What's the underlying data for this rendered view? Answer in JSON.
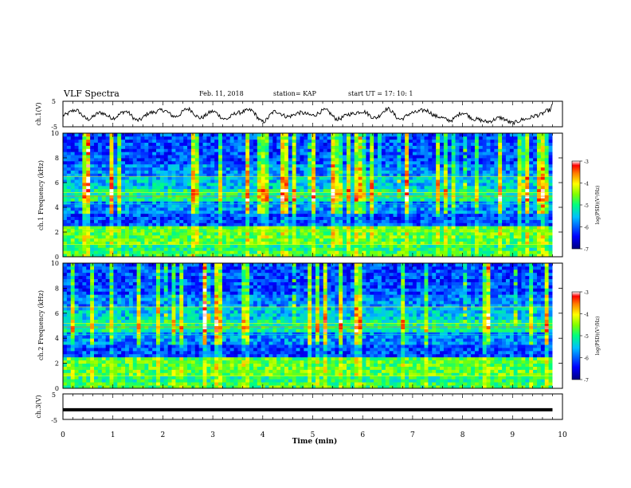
{
  "header": {
    "title": "VLF Spectra",
    "date": "Feb. 11, 2018",
    "station": "station= KAP",
    "start": "start  UT =   17: 10: 1"
  },
  "chart_data": [
    {
      "type": "line",
      "panel": "ch1-waveform",
      "ylabel": "ch.1(V)",
      "ylim": [
        -5,
        5
      ],
      "y_ticklabels": [
        "5",
        "-5"
      ],
      "xlim": [
        0,
        10
      ],
      "series": [
        {
          "x": [
            0,
            0.25,
            0.5,
            0.75,
            1,
            1.25,
            1.5,
            1.75,
            2,
            2.25,
            2.5,
            2.75,
            3,
            3.25,
            3.5,
            3.75,
            4,
            4.25,
            4.5,
            4.75,
            5,
            5.25,
            5.5,
            5.75,
            6,
            6.25,
            6.5,
            6.75,
            7,
            7.25,
            7.5,
            7.75,
            8,
            8.25,
            8.5,
            8.75,
            9,
            9.25,
            9.5,
            9.75,
            9.8
          ],
          "values": [
            -0.5,
            1.5,
            -2,
            0.5,
            -1.5,
            1,
            -2.5,
            0.5,
            1.5,
            -1,
            2,
            -1.5,
            1,
            -2,
            0.5,
            1.5,
            -3,
            1,
            -1,
            0.5,
            -0.5,
            1.5,
            -2,
            0,
            1,
            -1.5,
            2,
            -2,
            0.5,
            1.5,
            -1,
            -2.5,
            0.5,
            -2,
            -3,
            -1.5,
            -3.5,
            -2,
            -0.5,
            1.5,
            3.5
          ]
        }
      ]
    },
    {
      "type": "heatmap",
      "panel": "ch1-spectrogram",
      "ylabel": "ch.1 Frequency (kHz)",
      "ylim": [
        0,
        10
      ],
      "y_ticks": [
        0,
        2,
        4,
        6,
        8,
        10
      ],
      "xlim": [
        0,
        10
      ],
      "colorbar": {
        "label": "log(PSD)(V²/Hz)",
        "range": [
          -7,
          -3
        ],
        "ticks": [
          "-3",
          "-4",
          "-5",
          "-6",
          "-7"
        ]
      }
    },
    {
      "type": "heatmap",
      "panel": "ch2-spectrogram",
      "ylabel": "ch.2 Frequency (kHz)",
      "ylim": [
        0,
        10
      ],
      "y_ticks": [
        0,
        2,
        4,
        6,
        8,
        10
      ],
      "xlim": [
        0,
        10
      ],
      "colorbar": {
        "label": "log(PSD)(V²/Hz)",
        "range": [
          -7,
          -3
        ],
        "ticks": [
          "-3",
          "-4",
          "-5",
          "-6",
          "-7"
        ]
      }
    },
    {
      "type": "line",
      "panel": "ch3-waveform",
      "ylabel": "ch.3(V)",
      "ylim": [
        -5,
        5
      ],
      "y_ticklabels": [
        "5",
        "-5"
      ],
      "xlim": [
        0,
        10
      ],
      "x_ticks": [
        0,
        1,
        2,
        3,
        4,
        5,
        6,
        7,
        8,
        9,
        10
      ],
      "xlabel": "Time (min)",
      "series": [
        {
          "x": [
            0,
            9.8
          ],
          "values": [
            -1.2,
            -1.2
          ]
        }
      ]
    }
  ],
  "colors": {
    "frame": "#000000",
    "colormap": [
      "#00007f",
      "#0000ff",
      "#00bfff",
      "#00ffbf",
      "#7fff00",
      "#ffff00",
      "#ff7f00",
      "#ff0000",
      "#ffffff"
    ]
  }
}
